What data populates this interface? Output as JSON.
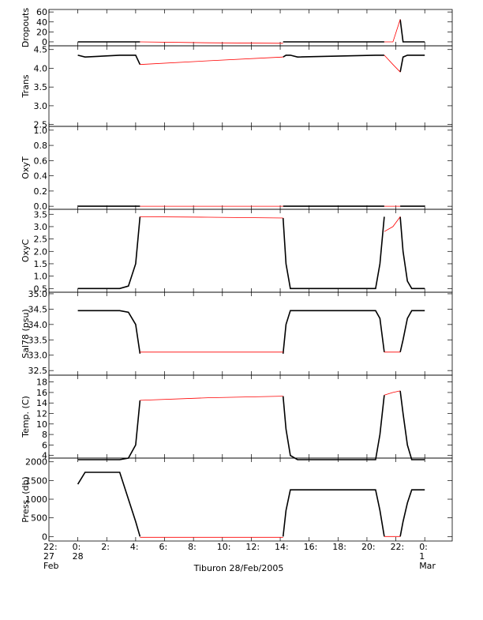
{
  "chart_data": [
    {
      "type": "line",
      "ylabel": "Dropouts",
      "ylim": [
        -8,
        65
      ],
      "yticks": [
        0,
        20,
        40,
        60
      ],
      "xlim": [
        -2,
        25.9
      ],
      "x": [
        0,
        0.5,
        2.9,
        3.5,
        4.0,
        4.3,
        9.0,
        14.2,
        14.4,
        14.7,
        15.2,
        20.6,
        20.9,
        21.2,
        21.8,
        22.3,
        22.5,
        22.8,
        23.1,
        24.0
      ],
      "series": [
        {
          "color": "#000000",
          "values": [
            0,
            0,
            0,
            0,
            0,
            0,
            null,
            0,
            0,
            0,
            0,
            0,
            0,
            0,
            null,
            45,
            0,
            0,
            0,
            0
          ]
        },
        {
          "color": "#ff0000",
          "values": [
            null,
            null,
            null,
            null,
            null,
            0,
            -2,
            -3,
            null,
            null,
            null,
            null,
            null,
            0,
            0,
            45,
            null,
            null,
            null,
            null
          ]
        }
      ]
    },
    {
      "type": "line",
      "ylabel": "Trans",
      "ylim": [
        2.45,
        4.6
      ],
      "yticks": [
        2.5,
        {
          "value": 3.0,
          "label": "3.0"
        },
        3.5,
        {
          "value": 4.0,
          "label": "4.0"
        },
        4.5
      ],
      "xlim": [
        -2,
        25.9
      ],
      "x": [
        0,
        0.5,
        2.9,
        3.5,
        4.0,
        4.3,
        9.0,
        14.2,
        14.4,
        14.7,
        15.2,
        20.6,
        20.9,
        21.2,
        21.8,
        22.3,
        22.5,
        22.8,
        23.1,
        24.0
      ],
      "series": [
        {
          "color": "#000000",
          "values": [
            4.35,
            4.3,
            4.35,
            4.35,
            4.35,
            4.1,
            null,
            4.3,
            4.35,
            4.35,
            4.3,
            4.35,
            4.35,
            4.35,
            null,
            3.9,
            4.3,
            4.35,
            4.35,
            4.35
          ]
        },
        {
          "color": "#ff0000",
          "values": [
            null,
            null,
            null,
            null,
            null,
            4.1,
            4.2,
            4.3,
            null,
            null,
            null,
            null,
            null,
            4.35,
            4.1,
            3.9,
            null,
            null,
            null,
            null
          ]
        }
      ]
    },
    {
      "type": "line",
      "ylabel": "OxyT",
      "ylim": [
        -0.04,
        1.05
      ],
      "yticks": [
        {
          "value": 0.0,
          "label": "0.0"
        },
        0.2,
        0.4,
        0.6,
        0.8,
        {
          "value": 1.0,
          "label": "1.0"
        }
      ],
      "xlim": [
        -2,
        25.9
      ],
      "x": [
        0,
        0.5,
        2.9,
        3.5,
        4.0,
        4.3,
        9.0,
        14.2,
        14.4,
        14.7,
        15.2,
        20.6,
        20.9,
        21.2,
        21.8,
        22.3,
        22.5,
        22.8,
        23.1,
        24.0
      ],
      "series": [
        {
          "color": "#000000",
          "values": [
            0,
            0,
            0,
            0,
            0,
            0,
            null,
            0,
            0,
            0,
            0,
            0,
            0,
            0,
            null,
            0,
            0,
            0,
            0,
            0
          ]
        },
        {
          "color": "#ff0000",
          "values": [
            null,
            null,
            null,
            null,
            null,
            0,
            0,
            0,
            null,
            null,
            null,
            null,
            null,
            0,
            0,
            0,
            null,
            null,
            null,
            null
          ]
        }
      ]
    },
    {
      "type": "line",
      "ylabel": "OxyC",
      "ylim": [
        0.35,
        3.7
      ],
      "yticks": [
        0.5,
        {
          "value": 1.0,
          "label": "1.0"
        },
        1.5,
        {
          "value": 2.0,
          "label": "2.0"
        },
        2.5,
        {
          "value": 3.0,
          "label": "3.0"
        },
        3.5
      ],
      "xlim": [
        -2,
        25.9
      ],
      "x": [
        0,
        0.5,
        2.9,
        3.5,
        4.0,
        4.3,
        9.0,
        14.2,
        14.4,
        14.7,
        15.2,
        20.6,
        20.9,
        21.2,
        21.8,
        22.3,
        22.5,
        22.8,
        23.1,
        24.0
      ],
      "series": [
        {
          "color": "#000000",
          "values": [
            0.5,
            0.5,
            0.5,
            0.6,
            1.5,
            3.4,
            null,
            3.35,
            1.5,
            0.5,
            0.5,
            0.5,
            1.5,
            3.4,
            null,
            3.4,
            2.0,
            0.8,
            0.5,
            0.5
          ]
        },
        {
          "color": "#ff0000",
          "values": [
            null,
            null,
            null,
            null,
            null,
            3.4,
            3.38,
            3.35,
            null,
            null,
            null,
            null,
            null,
            2.8,
            3.0,
            3.4,
            null,
            null,
            null,
            null
          ]
        }
      ]
    },
    {
      "type": "line",
      "ylabel": "Sal78 (psu)",
      "ylim": [
        32.35,
        35.05
      ],
      "yticks": [
        32.5,
        {
          "value": 33.0,
          "label": "33.0"
        },
        33.5,
        {
          "value": 34.0,
          "label": "34.0"
        },
        34.5,
        {
          "value": 35.0,
          "label": "35.0"
        }
      ],
      "xlim": [
        -2,
        25.9
      ],
      "x": [
        0,
        0.5,
        2.9,
        3.5,
        4.0,
        4.3,
        9.0,
        14.2,
        14.4,
        14.7,
        15.2,
        20.6,
        20.9,
        21.2,
        21.8,
        22.3,
        22.5,
        22.8,
        23.1,
        24.0
      ],
      "series": [
        {
          "color": "#000000",
          "values": [
            34.45,
            34.45,
            34.45,
            34.4,
            34.0,
            33.05,
            null,
            33.05,
            34.0,
            34.45,
            34.45,
            34.45,
            34.2,
            33.1,
            null,
            33.1,
            33.5,
            34.2,
            34.45,
            34.45
          ]
        },
        {
          "color": "#ff0000",
          "values": [
            null,
            null,
            null,
            null,
            null,
            33.1,
            33.1,
            33.1,
            null,
            null,
            null,
            null,
            null,
            33.1,
            33.1,
            33.1,
            null,
            null,
            null,
            null
          ]
        }
      ]
    },
    {
      "type": "line",
      "ylabel": "Temp. (C)",
      "ylim": [
        3.5,
        19.3
      ],
      "yticks": [
        4,
        6,
        8,
        10,
        12,
        14,
        16,
        18
      ],
      "xlim": [
        -2,
        25.9
      ],
      "x": [
        0,
        0.5,
        2.9,
        3.5,
        4.0,
        4.3,
        9.0,
        14.2,
        14.4,
        14.7,
        15.2,
        20.6,
        20.9,
        21.2,
        21.8,
        22.3,
        22.5,
        22.8,
        23.1,
        24.0
      ],
      "series": [
        {
          "color": "#000000",
          "values": [
            3.2,
            3.2,
            3.2,
            3.5,
            6,
            14.5,
            null,
            15.3,
            9,
            4,
            3.2,
            3.2,
            8,
            15.5,
            null,
            16.3,
            12,
            6,
            3.2,
            3.2
          ]
        },
        {
          "color": "#ff0000",
          "values": [
            null,
            null,
            null,
            null,
            null,
            14.5,
            15.0,
            15.3,
            null,
            null,
            null,
            null,
            null,
            15.5,
            16.0,
            16.3,
            null,
            null,
            null,
            null
          ]
        }
      ]
    },
    {
      "type": "line",
      "ylabel": "Press. (db)",
      "xlabel": "Tiburon 28/Feb/2005",
      "ylim": [
        -120,
        2100
      ],
      "yticks": [
        0,
        500,
        1000,
        1500,
        2000
      ],
      "xlim": [
        -2,
        25.9
      ],
      "xticks": [
        {
          "value": -2,
          "label": "22:\n27\nFeb"
        },
        {
          "value": 0,
          "label": "0:\n28"
        },
        {
          "value": 2,
          "label": "2:"
        },
        {
          "value": 4,
          "label": "4:"
        },
        {
          "value": 6,
          "label": "6:"
        },
        {
          "value": 8,
          "label": "8:"
        },
        {
          "value": 10,
          "label": "10:"
        },
        {
          "value": 12,
          "label": "12:"
        },
        {
          "value": 14,
          "label": "14:"
        },
        {
          "value": 16,
          "label": "16:"
        },
        {
          "value": 18,
          "label": "18:"
        },
        {
          "value": 20,
          "label": "20:"
        },
        {
          "value": 22,
          "label": "22:"
        },
        {
          "value": 24,
          "label": "0:\n1\nMar"
        }
      ],
      "x": [
        0,
        0.5,
        2.9,
        3.5,
        4.0,
        4.3,
        9.0,
        14.2,
        14.4,
        14.7,
        15.2,
        20.6,
        20.9,
        21.2,
        21.8,
        22.3,
        22.5,
        22.8,
        23.1,
        24.0
      ],
      "series": [
        {
          "color": "#000000",
          "values": [
            1400,
            1720,
            1720,
            1000,
            400,
            0,
            null,
            0,
            700,
            1250,
            1250,
            1250,
            700,
            0,
            null,
            0,
            400,
            900,
            1250,
            1250
          ]
        },
        {
          "color": "#ff0000",
          "values": [
            null,
            null,
            null,
            null,
            null,
            -20,
            -20,
            -20,
            null,
            null,
            null,
            null,
            null,
            0,
            0,
            0,
            null,
            null,
            null,
            null
          ]
        }
      ]
    }
  ]
}
